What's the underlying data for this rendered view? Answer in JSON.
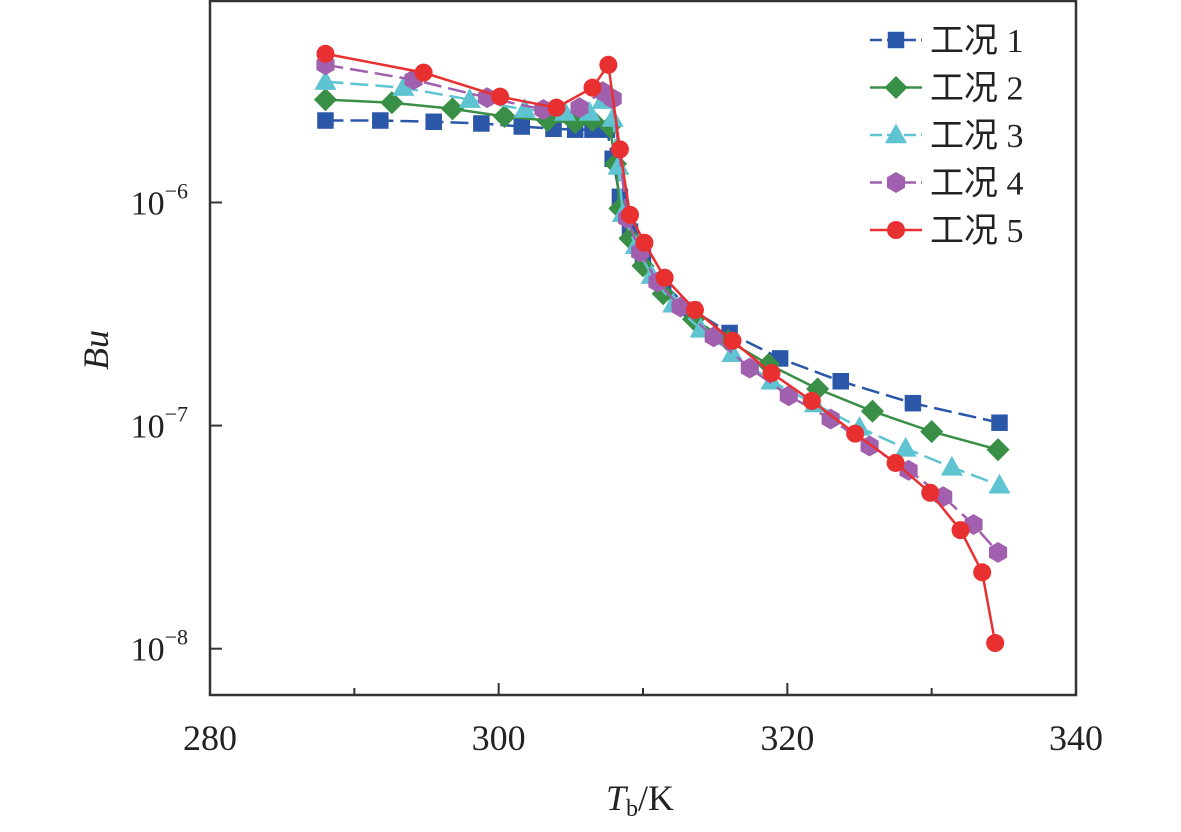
{
  "chart_data": {
    "type": "line",
    "title": "",
    "xlabel": {
      "main": "T",
      "sub": "b",
      "unit": "/K"
    },
    "ylabel": "Bu",
    "xlim": [
      280,
      340
    ],
    "ylim": [
      6.2e-09,
      8e-06
    ],
    "yscale": "log",
    "grid": false,
    "legend_position": "top-right",
    "x_ticks": [
      {
        "value": 280,
        "label": "280"
      },
      {
        "value": 300,
        "label": "300"
      },
      {
        "value": 320,
        "label": "320"
      },
      {
        "value": 340,
        "label": "340"
      }
    ],
    "y_ticks": [
      {
        "value": 1e-06,
        "base": "10",
        "exp": "−6"
      },
      {
        "value": 1e-07,
        "base": "10",
        "exp": "−7"
      },
      {
        "value": 1e-08,
        "base": "10",
        "exp": "−8"
      }
    ],
    "series": [
      {
        "name": "工况 1",
        "color": "#2b57a8",
        "marker": "square",
        "dashed": true,
        "x": [
          288.0,
          291.8,
          295.5,
          298.8,
          301.6,
          303.8,
          305.3,
          306.5,
          307.5,
          307.9,
          308.4,
          309.1,
          310.0,
          311.4,
          313.4,
          316.0,
          319.5,
          323.7,
          328.7,
          334.7
        ],
        "y": [
          2.33e-06,
          2.33e-06,
          2.3e-06,
          2.26e-06,
          2.19e-06,
          2.14e-06,
          2.12e-06,
          2.12e-06,
          2.12e-06,
          1.57e-06,
          1.06e-06,
          7.4e-07,
          5.7e-07,
          4.3e-07,
          3.3e-07,
          2.6e-07,
          2e-07,
          1.58e-07,
          1.26e-07,
          1.03e-07
        ]
      },
      {
        "name": "工况 2",
        "color": "#3a8f47",
        "marker": "diamond",
        "dashed": false,
        "x": [
          288.0,
          292.6,
          296.8,
          300.4,
          303.4,
          305.3,
          306.5,
          307.7,
          308.1,
          308.4,
          309.1,
          310.0,
          311.4,
          313.5,
          315.9,
          318.7,
          322.1,
          325.9,
          330.0,
          334.6
        ],
        "y": [
          2.89e-06,
          2.8e-06,
          2.63e-06,
          2.43e-06,
          2.33e-06,
          2.28e-06,
          2.33e-06,
          2.19e-06,
          1.49e-06,
          9.4e-07,
          6.9e-07,
          5.2e-07,
          3.9e-07,
          3e-07,
          2.4e-07,
          1.88e-07,
          1.46e-07,
          1.16e-07,
          9.4e-08,
          7.8e-08
        ]
      },
      {
        "name": "工况 3",
        "color": "#5fc4d2",
        "marker": "triangle",
        "dashed": true,
        "x": [
          288.0,
          293.4,
          298.0,
          301.8,
          304.6,
          306.3,
          307.2,
          307.9,
          308.3,
          308.6,
          309.5,
          310.6,
          312.1,
          314.0,
          316.2,
          318.9,
          321.9,
          325.0,
          328.2,
          331.4,
          334.7
        ],
        "y": [
          3.48e-06,
          3.27e-06,
          2.89e-06,
          2.61e-06,
          2.53e-06,
          2.53e-06,
          2.86e-06,
          2.38e-06,
          1.45e-06,
          8.9e-07,
          6.4e-07,
          4.7e-07,
          3.5e-07,
          2.7e-07,
          2.1e-07,
          1.58e-07,
          1.25e-07,
          9.8e-08,
          7.9e-08,
          6.5e-08,
          5.4e-08
        ]
      },
      {
        "name": "工况 4",
        "color": "#a160ad",
        "marker": "hexagon",
        "dashed": true,
        "x": [
          288.0,
          294.1,
          299.2,
          303.1,
          305.6,
          307.2,
          307.9,
          308.9,
          309.8,
          311.0,
          312.6,
          314.9,
          317.4,
          320.1,
          323.0,
          325.7,
          328.4,
          330.8,
          332.9,
          334.6
        ],
        "y": [
          4.14e-06,
          3.55e-06,
          2.95e-06,
          2.61e-06,
          2.66e-06,
          3.14e-06,
          2.92e-06,
          8.5e-07,
          6e-07,
          4.4e-07,
          3.4e-07,
          2.5e-07,
          1.81e-07,
          1.36e-07,
          1.07e-07,
          8.1e-08,
          6.3e-08,
          4.8e-08,
          3.6e-08,
          2.7e-08
        ]
      },
      {
        "name": "工况 5",
        "color": "#e83030",
        "marker": "circle",
        "dashed": false,
        "x": [
          288.0,
          294.8,
          300.1,
          304.0,
          306.5,
          307.6,
          308.4,
          309.1,
          310.1,
          311.5,
          313.6,
          316.2,
          318.9,
          321.7,
          324.7,
          327.5,
          329.9,
          332.0,
          333.5,
          334.4
        ],
        "y": [
          4.64e-06,
          3.82e-06,
          2.98e-06,
          2.66e-06,
          3.27e-06,
          4.14e-06,
          1.73e-06,
          8.8e-07,
          6.6e-07,
          4.6e-07,
          3.3e-07,
          2.4e-07,
          1.72e-07,
          1.29e-07,
          9.2e-08,
          6.8e-08,
          5e-08,
          3.4e-08,
          2.2e-08,
          1.06e-08
        ]
      }
    ]
  }
}
